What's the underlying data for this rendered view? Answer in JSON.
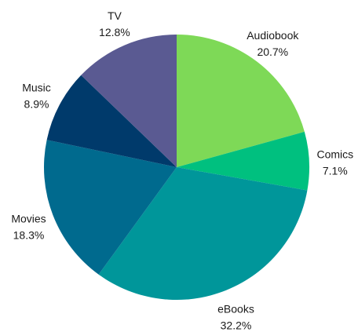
{
  "chart_data": {
    "type": "pie",
    "start_angle_deg": 0,
    "direction": "clockwise",
    "slices": [
      {
        "label": "Audiobook",
        "value": 20.7,
        "value_label": "20.7%",
        "color": "#7ed957"
      },
      {
        "label": "Comics",
        "value": 7.1,
        "value_label": "7.1%",
        "color": "#00c07f"
      },
      {
        "label": "eBooks",
        "value": 32.2,
        "value_label": "32.2%",
        "color": "#00969a"
      },
      {
        "label": "Movies",
        "value": 18.3,
        "value_label": "18.3%",
        "color": "#006a8e"
      },
      {
        "label": "Music",
        "value": 8.9,
        "value_label": "8.9%",
        "color": "#003a6b"
      },
      {
        "label": "TV",
        "value": 12.8,
        "value_label": "12.8%",
        "color": "#5a5a92"
      }
    ]
  }
}
